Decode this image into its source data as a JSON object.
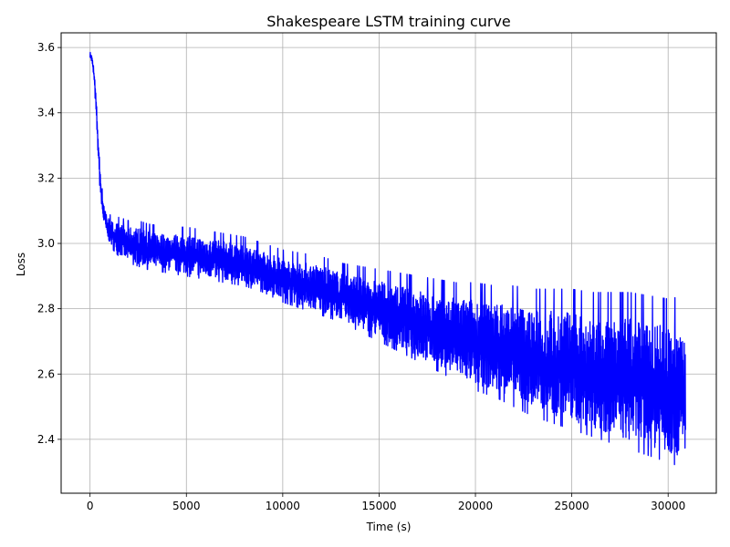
{
  "chart_data": {
    "type": "line",
    "title": "Shakespeare LSTM training curve",
    "xlabel": "Time (s)",
    "ylabel": "Loss",
    "xlim": [
      -1500,
      32500
    ],
    "ylim": [
      2.235,
      3.645
    ],
    "xticks": [
      0,
      5000,
      10000,
      15000,
      20000,
      25000,
      30000
    ],
    "yticks": [
      2.4,
      2.6,
      2.8,
      3.0,
      3.2,
      3.4,
      3.6
    ],
    "grid": true,
    "series": [
      {
        "color": "#0000ff",
        "x": [
          0,
          100,
          200,
          300,
          400,
          500,
          600,
          700,
          800,
          900,
          1000,
          1200,
          1500,
          2000,
          2500,
          3000,
          4000,
          5000,
          6000,
          7000,
          8000,
          9000,
          10000,
          11000,
          12000,
          13000,
          14000,
          15000,
          16000,
          17000,
          18000,
          19000,
          20000,
          21000,
          22000,
          23000,
          24000,
          25000,
          26000,
          27000,
          28000,
          29000,
          30000,
          30900
        ],
        "low": [
          3.57,
          3.55,
          3.5,
          3.4,
          3.28,
          3.17,
          3.1,
          3.06,
          3.04,
          3.01,
          3.0,
          2.98,
          2.96,
          2.94,
          2.93,
          2.92,
          2.91,
          2.9,
          2.89,
          2.88,
          2.87,
          2.85,
          2.82,
          2.8,
          2.78,
          2.76,
          2.73,
          2.7,
          2.67,
          2.64,
          2.61,
          2.58,
          2.55,
          2.53,
          2.5,
          2.47,
          2.45,
          2.43,
          2.41,
          2.39,
          2.37,
          2.35,
          2.33,
          2.31
        ],
        "high": [
          3.59,
          3.58,
          3.55,
          3.48,
          3.38,
          3.27,
          3.2,
          3.15,
          3.12,
          3.1,
          3.09,
          3.08,
          3.08,
          3.07,
          3.07,
          3.06,
          3.05,
          3.05,
          3.04,
          3.03,
          3.02,
          3.0,
          2.98,
          2.97,
          2.96,
          2.94,
          2.93,
          2.92,
          2.91,
          2.9,
          2.89,
          2.88,
          2.88,
          2.87,
          2.87,
          2.86,
          2.86,
          2.86,
          2.85,
          2.85,
          2.85,
          2.84,
          2.83,
          2.84
        ]
      }
    ]
  }
}
